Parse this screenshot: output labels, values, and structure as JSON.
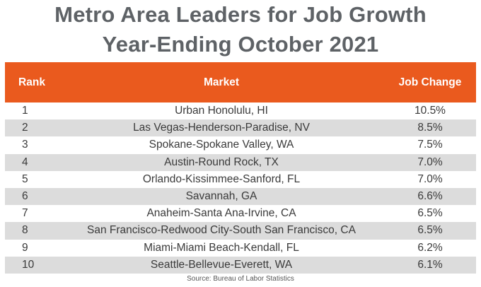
{
  "title": {
    "line1": "Metro Area Leaders for Job Growth",
    "line2": "Year-Ending October 2021"
  },
  "table": {
    "headers": {
      "rank": "Rank",
      "market": "Market",
      "change": "Job Change"
    },
    "rows": [
      {
        "rank": "1",
        "market": "Urban Honolulu, HI",
        "change": "10.5%"
      },
      {
        "rank": "2",
        "market": "Las Vegas-Henderson-Paradise, NV",
        "change": "8.5%"
      },
      {
        "rank": "3",
        "market": "Spokane-Spokane Valley, WA",
        "change": "7.5%"
      },
      {
        "rank": "4",
        "market": "Austin-Round Rock, TX",
        "change": "7.0%"
      },
      {
        "rank": "5",
        "market": "Orlando-Kissimmee-Sanford, FL",
        "change": "7.0%"
      },
      {
        "rank": "6",
        "market": "Savannah, GA",
        "change": "6.6%"
      },
      {
        "rank": "7",
        "market": "Anaheim-Santa Ana-Irvine, CA",
        "change": "6.5%"
      },
      {
        "rank": "8",
        "market": "San Francisco-Redwood City-South San Francisco, CA",
        "change": "6.5%"
      },
      {
        "rank": "9",
        "market": "Miami-Miami Beach-Kendall, FL",
        "change": "6.2%"
      },
      {
        "rank": "10",
        "market": "Seattle-Bellevue-Everett, WA",
        "change": "6.1%"
      }
    ]
  },
  "source": "Source: Bureau of Labor Statistics",
  "colors": {
    "header_bg": "#ea5a1e",
    "stripe": "#dcdcdc",
    "title": "#5e6266"
  }
}
